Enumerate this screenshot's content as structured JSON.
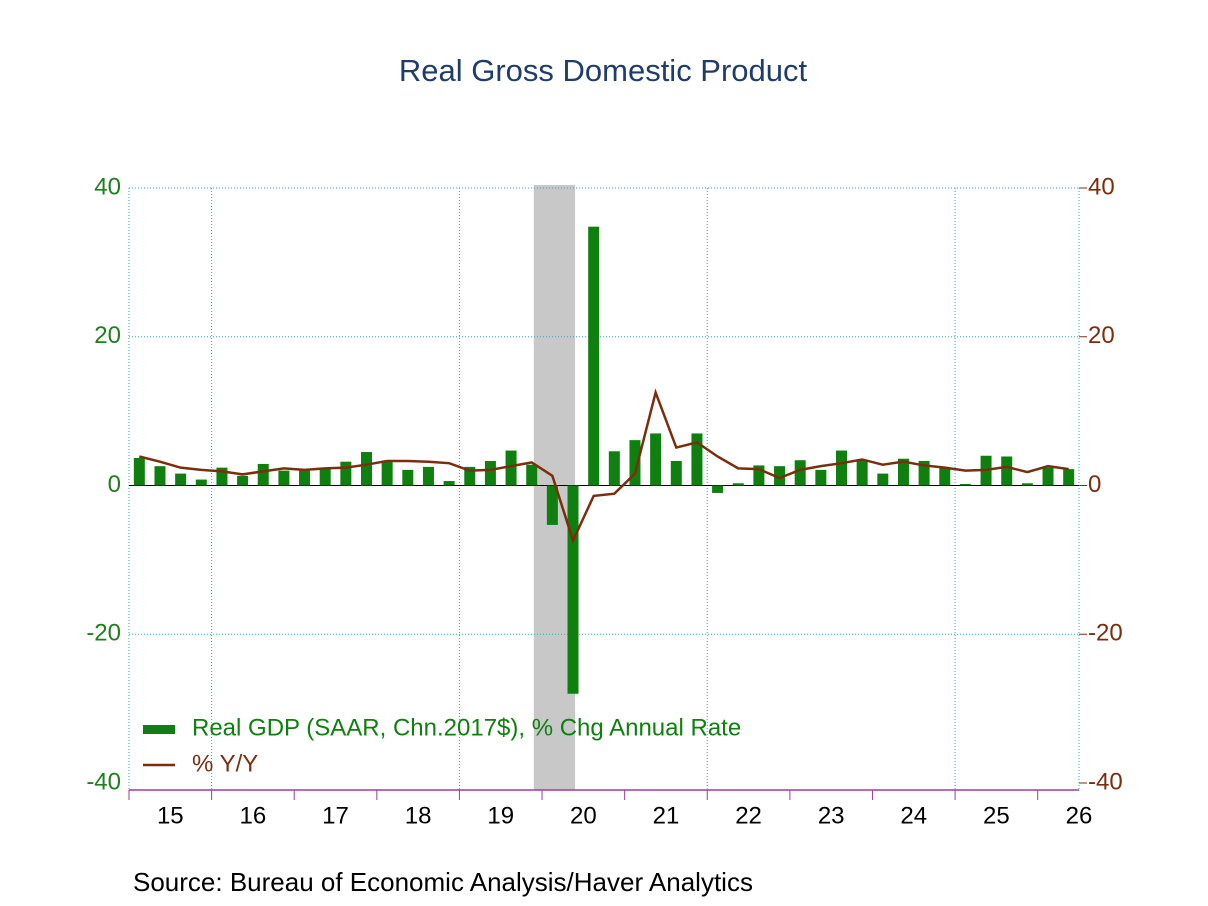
{
  "chart_data": {
    "type": "bar_line",
    "title": "Real Gross Domestic Product",
    "source": "Source:  Bureau of Economic Analysis/Haver Analytics",
    "x": [
      2015.125,
      2015.375,
      2015.625,
      2015.875,
      2016.125,
      2016.375,
      2016.625,
      2016.875,
      2017.125,
      2017.375,
      2017.625,
      2017.875,
      2018.125,
      2018.375,
      2018.625,
      2018.875,
      2019.125,
      2019.375,
      2019.625,
      2019.875,
      2020.125,
      2020.375,
      2020.625,
      2020.875,
      2021.125,
      2021.375,
      2021.625,
      2021.875,
      2022.125,
      2022.375,
      2022.625,
      2022.875,
      2023.125,
      2023.375,
      2023.625,
      2023.875,
      2024.125,
      2024.375,
      2024.625,
      2024.875,
      2025.125,
      2025.375,
      2025.625,
      2025.875,
      2026.125,
      2026.375
    ],
    "series": [
      {
        "name": "Real GDP (SAAR, Chn.2017$), % Chg Annual Rate",
        "color": "#0f800f",
        "kind": "bar",
        "values": [
          3.7,
          2.6,
          1.6,
          0.8,
          2.4,
          1.3,
          2.9,
          2.0,
          2.0,
          2.3,
          3.2,
          4.5,
          3.3,
          2.1,
          2.5,
          0.6,
          2.5,
          3.3,
          4.7,
          2.8,
          -5.3,
          -28.0,
          34.8,
          4.6,
          6.1,
          7.0,
          3.3,
          7.0,
          -1.0,
          0.3,
          2.7,
          2.6,
          3.4,
          2.1,
          4.7,
          3.4,
          1.6,
          3.6,
          3.3,
          2.4,
          0.2,
          4.0,
          3.9,
          0.3,
          2.4,
          2.2
        ]
      },
      {
        "name": "% Y/Y",
        "color": "#7a2e0e",
        "kind": "line",
        "axis": "y2",
        "values": [
          3.9,
          3.2,
          2.4,
          2.1,
          1.9,
          1.5,
          1.9,
          2.3,
          2.1,
          2.3,
          2.4,
          2.8,
          3.3,
          3.3,
          3.2,
          3.0,
          2.0,
          2.1,
          2.6,
          3.1,
          1.3,
          -7.4,
          -1.4,
          -1.1,
          1.6,
          12.5,
          5.1,
          5.8,
          3.9,
          2.3,
          2.2,
          1.0,
          2.1,
          2.6,
          3.0,
          3.5,
          2.8,
          3.2,
          2.7,
          2.4,
          2.0,
          2.1,
          2.5,
          1.8,
          2.6,
          2.2
        ]
      }
    ],
    "recession": [
      2019.9,
      2020.4
    ],
    "xlim": [
      2015,
      2026.5
    ],
    "xticks": [
      {
        "value": 2015,
        "label": "15"
      },
      {
        "value": 2016,
        "label": "16"
      },
      {
        "value": 2017,
        "label": "17"
      },
      {
        "value": 2018,
        "label": "18"
      },
      {
        "value": 2019,
        "label": "19"
      },
      {
        "value": 2020,
        "label": "20"
      },
      {
        "value": 2021,
        "label": "21"
      },
      {
        "value": 2022,
        "label": "22"
      },
      {
        "value": 2023,
        "label": "23"
      },
      {
        "value": 2024,
        "label": "24"
      },
      {
        "value": 2025,
        "label": "25"
      },
      {
        "value": 2026,
        "label": "26"
      }
    ],
    "xgrid": [
      2016,
      2019,
      2022,
      2025
    ],
    "ylim": [
      -40,
      40
    ],
    "yticks": [
      -40,
      -20,
      0,
      20,
      40
    ],
    "y2lim": [
      -40,
      40
    ],
    "y2ticks": [
      -40,
      -20,
      0,
      20,
      40
    ],
    "grid": true
  }
}
